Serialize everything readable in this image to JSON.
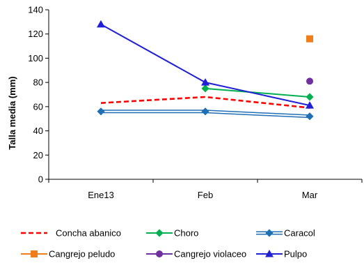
{
  "chart_data": {
    "type": "line",
    "title": "",
    "xlabel": "",
    "ylabel": "Talla media (mm)",
    "categories": [
      "Ene13",
      "Feb",
      "Mar"
    ],
    "ylim": [
      0,
      140
    ],
    "yticks": [
      0,
      20,
      40,
      60,
      80,
      100,
      120,
      140
    ],
    "grid": false,
    "legend_position": "bottom",
    "series": [
      {
        "name": "Concha abanico",
        "values": [
          63,
          68,
          59
        ],
        "color": "#ff0000",
        "dash": "dashed",
        "marker": "none"
      },
      {
        "name": "Choro",
        "values": [
          null,
          75,
          68
        ],
        "color": "#00b050",
        "dash": "solid",
        "marker": "diamond"
      },
      {
        "name": "Caracol",
        "values": [
          56,
          56,
          52
        ],
        "color": "#1f6fb4",
        "dash": "double",
        "marker": "diamond"
      },
      {
        "name": "Cangrejo peludo",
        "values": [
          null,
          null,
          116
        ],
        "color": "#f07c1a",
        "dash": "solid",
        "marker": "square"
      },
      {
        "name": "Cangrejo violaceo",
        "values": [
          null,
          null,
          81
        ],
        "color": "#7030a0",
        "dash": "solid",
        "marker": "circle"
      },
      {
        "name": "Pulpo",
        "values": [
          128,
          80,
          61
        ],
        "color": "#1f1fd6",
        "dash": "solid",
        "marker": "triangle"
      }
    ]
  }
}
